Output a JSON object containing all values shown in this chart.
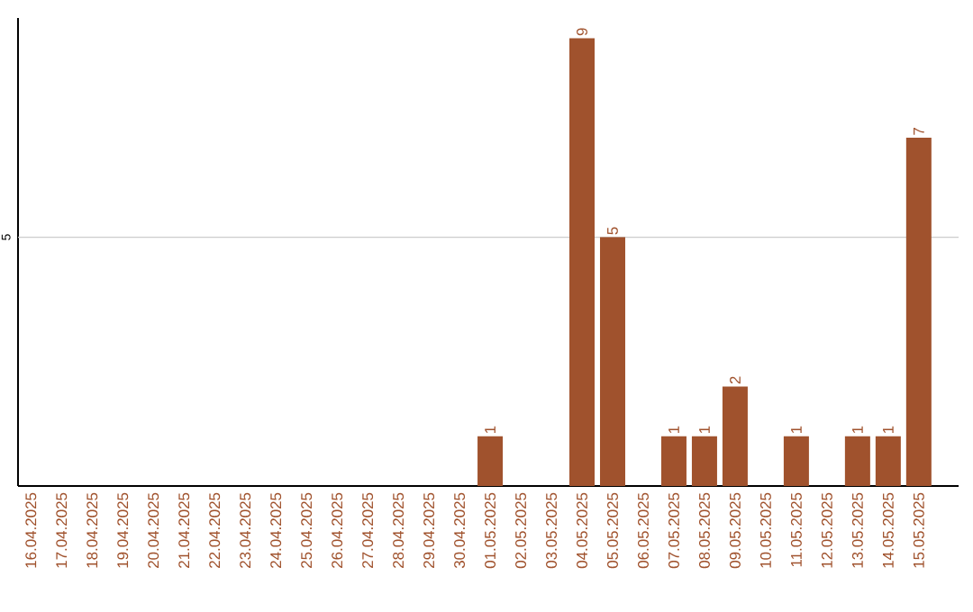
{
  "chart_data": {
    "type": "bar",
    "categories": [
      "16.04.2025",
      "17.04.2025",
      "18.04.2025",
      "19.04.2025",
      "20.04.2025",
      "21.04.2025",
      "22.04.2025",
      "23.04.2025",
      "24.04.2025",
      "25.04.2025",
      "26.04.2025",
      "27.04.2025",
      "28.04.2025",
      "29.04.2025",
      "30.04.2025",
      "01.05.2025",
      "02.05.2025",
      "03.05.2025",
      "04.05.2025",
      "05.05.2025",
      "06.05.2025",
      "07.05.2025",
      "08.05.2025",
      "09.05.2025",
      "10.05.2025",
      "11.05.2025",
      "12.05.2025",
      "13.05.2025",
      "14.05.2025",
      "15.05.2025"
    ],
    "values": [
      null,
      null,
      null,
      null,
      null,
      null,
      null,
      null,
      null,
      null,
      null,
      null,
      null,
      null,
      null,
      1,
      null,
      null,
      9,
      5,
      null,
      1,
      1,
      2,
      null,
      1,
      null,
      1,
      1,
      7
    ],
    "data_labels": true,
    "color": "#a0522d",
    "ref_lines": [
      {
        "axis": "y",
        "value": 5,
        "label": "5",
        "color": "#cccccc"
      }
    ]
  }
}
